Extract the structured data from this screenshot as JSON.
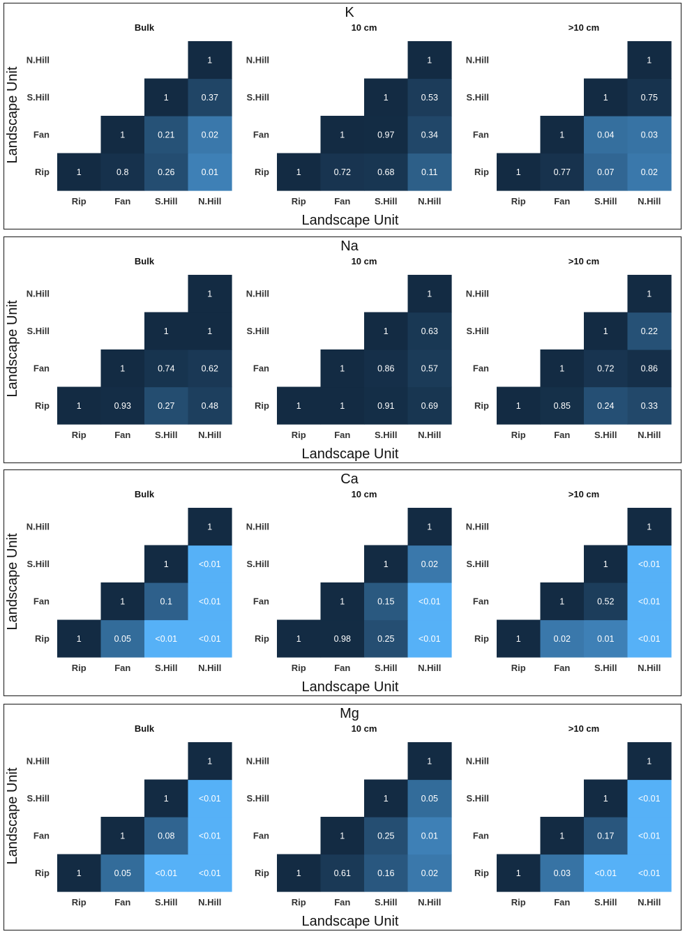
{
  "chart_data": [
    {
      "type": "heatmap",
      "title": "K",
      "xlabel": "Landscape Unit",
      "ylabel": "Landscape Unit",
      "categories": [
        "Rip",
        "Fan",
        "S.Hill",
        "N.Hill"
      ],
      "facets": [
        {
          "title": "Bulk",
          "values": [
            [
              1,
              "0.8",
              "0.26",
              "0.01"
            ],
            [
              null,
              1,
              "0.21",
              "0.02"
            ],
            [
              null,
              null,
              1,
              "0.37"
            ],
            [
              null,
              null,
              null,
              1
            ]
          ]
        },
        {
          "title": "10 cm",
          "values": [
            [
              1,
              "0.72",
              "0.68",
              "0.11"
            ],
            [
              null,
              1,
              "0.97",
              "0.34"
            ],
            [
              null,
              null,
              1,
              "0.53"
            ],
            [
              null,
              null,
              null,
              1
            ]
          ]
        },
        {
          "title": ">10 cm",
          "values": [
            [
              1,
              "0.77",
              "0.07",
              "0.02"
            ],
            [
              null,
              1,
              "0.04",
              "0.03"
            ],
            [
              null,
              null,
              1,
              "0.75"
            ],
            [
              null,
              null,
              null,
              1
            ]
          ]
        }
      ]
    },
    {
      "type": "heatmap",
      "title": "Na",
      "xlabel": "Landscape Unit",
      "ylabel": "Landscape Unit",
      "categories": [
        "Rip",
        "Fan",
        "S.Hill",
        "N.Hill"
      ],
      "facets": [
        {
          "title": "Bulk",
          "values": [
            [
              1,
              "0.93",
              "0.27",
              "0.48"
            ],
            [
              null,
              1,
              "0.74",
              "0.62"
            ],
            [
              null,
              null,
              1,
              "1"
            ],
            [
              null,
              null,
              null,
              1
            ]
          ]
        },
        {
          "title": "10 cm",
          "values": [
            [
              1,
              "1",
              "0.91",
              "0.69"
            ],
            [
              null,
              1,
              "0.86",
              "0.57"
            ],
            [
              null,
              null,
              1,
              "0.63"
            ],
            [
              null,
              null,
              null,
              1
            ]
          ]
        },
        {
          "title": ">10 cm",
          "values": [
            [
              1,
              "0.85",
              "0.24",
              "0.33"
            ],
            [
              null,
              1,
              "0.72",
              "0.86"
            ],
            [
              null,
              null,
              1,
              "0.22"
            ],
            [
              null,
              null,
              null,
              1
            ]
          ]
        }
      ]
    },
    {
      "type": "heatmap",
      "title": "Ca",
      "xlabel": "Landscape Unit",
      "ylabel": "Landscape Unit",
      "categories": [
        "Rip",
        "Fan",
        "S.Hill",
        "N.Hill"
      ],
      "facets": [
        {
          "title": "Bulk",
          "values": [
            [
              1,
              "0.05",
              "<0.01",
              "<0.01"
            ],
            [
              null,
              1,
              "0.1",
              "<0.01"
            ],
            [
              null,
              null,
              1,
              "<0.01"
            ],
            [
              null,
              null,
              null,
              1
            ]
          ]
        },
        {
          "title": "10 cm",
          "values": [
            [
              1,
              "0.98",
              "0.25",
              "<0.01"
            ],
            [
              null,
              1,
              "0.15",
              "<0.01"
            ],
            [
              null,
              null,
              1,
              "0.02"
            ],
            [
              null,
              null,
              null,
              1
            ]
          ]
        },
        {
          "title": ">10 cm",
          "values": [
            [
              1,
              "0.02",
              "0.01",
              "<0.01"
            ],
            [
              null,
              1,
              "0.52",
              "<0.01"
            ],
            [
              null,
              null,
              1,
              "<0.01"
            ],
            [
              null,
              null,
              null,
              1
            ]
          ]
        }
      ]
    },
    {
      "type": "heatmap",
      "title": "Mg",
      "xlabel": "Landscape Unit",
      "ylabel": "Landscape Unit",
      "categories": [
        "Rip",
        "Fan",
        "S.Hill",
        "N.Hill"
      ],
      "facets": [
        {
          "title": "Bulk",
          "values": [
            [
              1,
              "0.05",
              "<0.01",
              "<0.01"
            ],
            [
              null,
              1,
              "0.08",
              "<0.01"
            ],
            [
              null,
              null,
              1,
              "<0.01"
            ],
            [
              null,
              null,
              null,
              1
            ]
          ]
        },
        {
          "title": "10 cm",
          "values": [
            [
              1,
              "0.61",
              "0.16",
              "0.02"
            ],
            [
              null,
              1,
              "0.25",
              "0.01"
            ],
            [
              null,
              null,
              1,
              "0.05"
            ],
            [
              null,
              null,
              null,
              1
            ]
          ]
        },
        {
          "title": ">10 cm",
          "values": [
            [
              1,
              "0.03",
              "<0.01",
              "<0.01"
            ],
            [
              null,
              1,
              "0.17",
              "<0.01"
            ],
            [
              null,
              null,
              1,
              "<0.01"
            ],
            [
              null,
              null,
              null,
              1
            ]
          ]
        }
      ]
    }
  ],
  "colors": {
    "high": "#132b43",
    "low": "#56b1f7",
    "text": "#ffffff",
    "border": "#333333"
  }
}
